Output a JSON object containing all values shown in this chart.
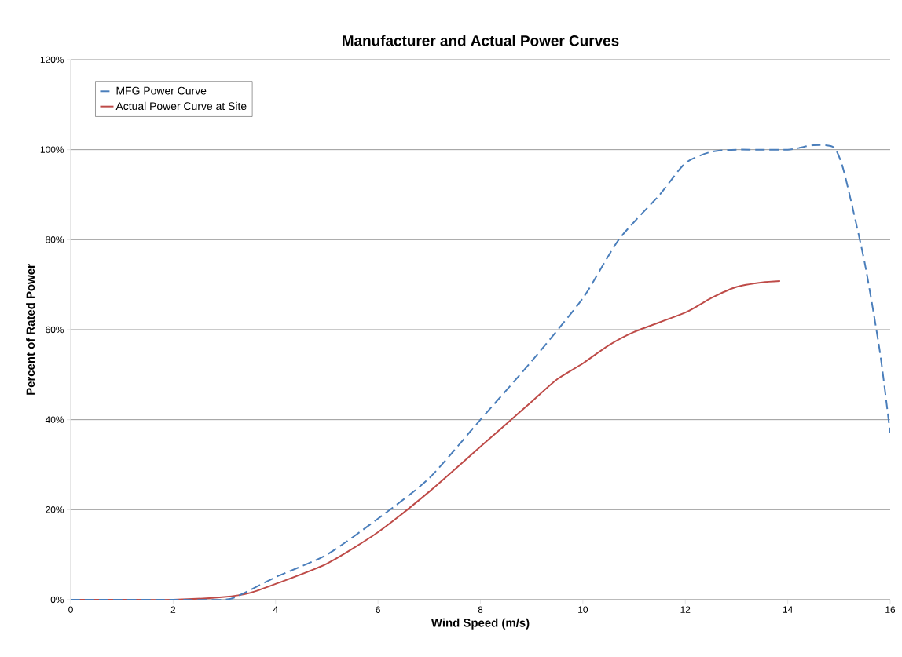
{
  "chart_data": {
    "type": "line",
    "title": "Manufacturer and Actual Power Curves",
    "xlabel": "Wind Speed (m/s)",
    "ylabel": "Percent of Rated Power",
    "xlim": [
      0,
      16
    ],
    "xticks": [
      0,
      2,
      4,
      6,
      8,
      10,
      12,
      14,
      16
    ],
    "ylim": [
      0,
      120
    ],
    "yticks": [
      {
        "value": 0,
        "label": "0%"
      },
      {
        "value": 20,
        "label": "20%"
      },
      {
        "value": 40,
        "label": "40%"
      },
      {
        "value": 60,
        "label": "60%"
      },
      {
        "value": 80,
        "label": "80%"
      },
      {
        "value": 100,
        "label": "100%"
      },
      {
        "value": 120,
        "label": "120%"
      }
    ],
    "grid": "y",
    "legend": "top left",
    "series": [
      {
        "name": "MFG Power Curve",
        "color": "#4a7ebb",
        "line_style": "dashed",
        "x": [
          0,
          1,
          2,
          3,
          3.3,
          4,
          5,
          6,
          7,
          8,
          9,
          10,
          10.7,
          11.5,
          12,
          12.5,
          13,
          14,
          14.5,
          14.9,
          15.1,
          15.5,
          15.8,
          16
        ],
        "values": [
          0,
          0,
          0,
          0,
          1,
          5,
          10,
          18,
          27,
          40,
          53,
          67,
          80,
          90,
          97,
          99.5,
          100,
          100,
          101,
          100.5,
          95,
          75,
          55,
          37
        ]
      },
      {
        "name": "Actual Power Curve at Site",
        "color": "#be4b48",
        "line_style": "solid",
        "x": [
          0,
          1,
          2,
          3,
          3.5,
          4,
          5,
          6,
          7,
          8,
          8.5,
          9,
          9.5,
          10,
          10.5,
          11,
          12,
          12.5,
          13,
          13.5,
          13.85
        ],
        "values": [
          0,
          0,
          0,
          0.6,
          1.5,
          3.5,
          8,
          15,
          24,
          34,
          39,
          44,
          49,
          52.5,
          56.5,
          59.5,
          63.8,
          67,
          69.5,
          70.5,
          70.8
        ]
      }
    ]
  }
}
